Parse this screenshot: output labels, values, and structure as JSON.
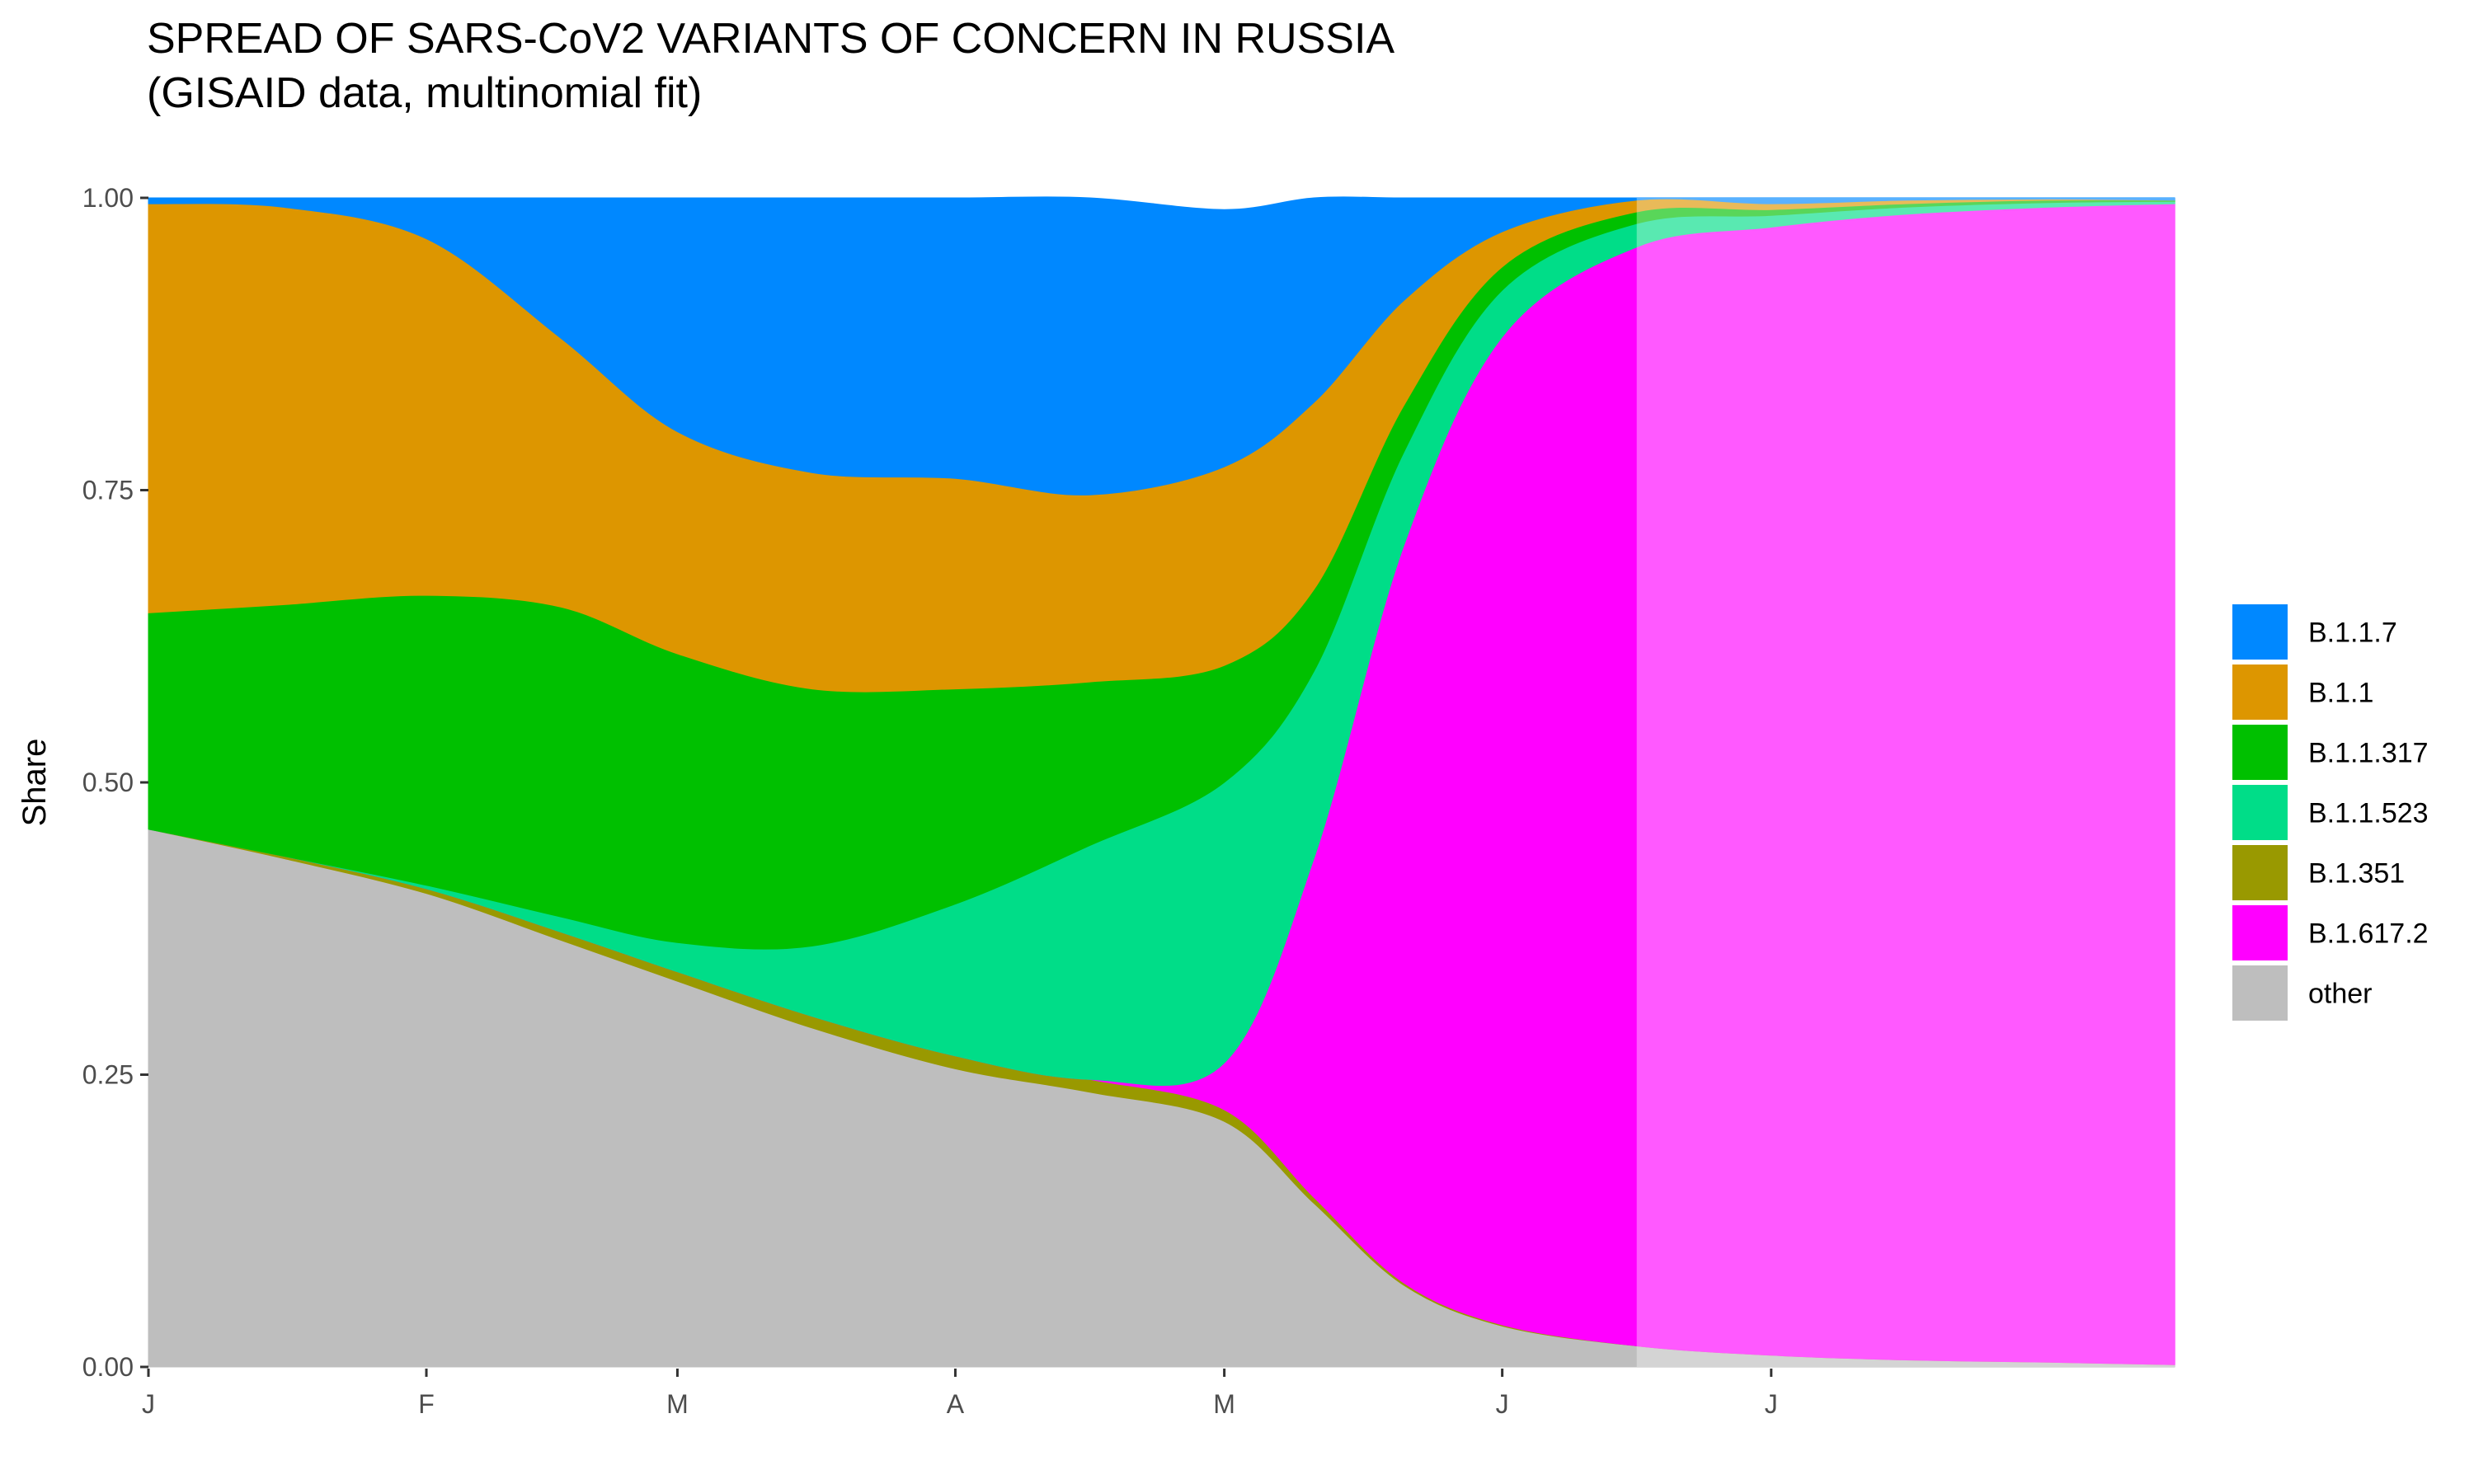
{
  "chart_data": {
    "type": "area",
    "title_line1": "SPREAD OF SARS-CoV2 VARIANTS OF CONCERN IN RUSSIA",
    "title_line2": "(GISAID data, multinomial fit)",
    "xlabel": "",
    "ylabel": "Share",
    "ylim": [
      0,
      1
    ],
    "y_ticks": [
      "0.00",
      "0.25",
      "0.50",
      "0.75",
      "1.00"
    ],
    "x_tick_labels": [
      "J",
      "F",
      "M",
      "A",
      "M",
      "J",
      "J"
    ],
    "x_tick_dates": [
      "2021-01-01",
      "2021-02-01",
      "2021-03-01",
      "2021-04-01",
      "2021-05-01",
      "2021-06-01",
      "2021-07-01"
    ],
    "x_range": [
      "2021-01-01",
      "2021-08-15"
    ],
    "projection_start": "2021-06-16",
    "grid": false,
    "legend_position": "right",
    "x": [
      "2021-01-01",
      "2021-01-16",
      "2021-02-01",
      "2021-02-16",
      "2021-03-01",
      "2021-03-16",
      "2021-04-01",
      "2021-04-16",
      "2021-05-01",
      "2021-05-11",
      "2021-05-21",
      "2021-06-01",
      "2021-06-16",
      "2021-07-01",
      "2021-07-16",
      "2021-08-01",
      "2021-08-15"
    ],
    "series": [
      {
        "name": "other",
        "color": "#BEBEBE",
        "values": [
          0.46,
          0.435,
          0.405,
          0.365,
          0.33,
          0.29,
          0.255,
          0.235,
          0.21,
          0.14,
          0.07,
          0.035,
          0.018,
          0.01,
          0.006,
          0.004,
          0.002
        ]
      },
      {
        "name": "B.1.351",
        "color": "#999900",
        "values": [
          0.0,
          0.002,
          0.004,
          0.007,
          0.008,
          0.01,
          0.011,
          0.011,
          0.01,
          0.005,
          0.002,
          0.001,
          0.0,
          0.0,
          0.0,
          0.0,
          0.0
        ]
      },
      {
        "name": "B.1.617.2",
        "color": "#FF00FF",
        "values": [
          0.0,
          0.0,
          0.0,
          0.0,
          0.0,
          0.0,
          0.0,
          0.0,
          0.04,
          0.29,
          0.63,
          0.845,
          0.94,
          0.965,
          0.98,
          0.988,
          0.993
        ]
      },
      {
        "name": "B.1.1.523",
        "color": "#00DD88",
        "values": [
          0.0,
          0.0,
          0.003,
          0.013,
          0.025,
          0.06,
          0.13,
          0.2,
          0.24,
          0.16,
          0.08,
          0.04,
          0.02,
          0.01,
          0.006,
          0.004,
          0.002
        ]
      },
      {
        "name": "B.1.1.317",
        "color": "#00C000",
        "values": [
          0.185,
          0.215,
          0.248,
          0.265,
          0.247,
          0.22,
          0.184,
          0.14,
          0.1,
          0.07,
          0.04,
          0.02,
          0.01,
          0.005,
          0.003,
          0.002,
          0.001
        ]
      },
      {
        "name": "B.1.1",
        "color": "#DD9600",
        "values": [
          0.35,
          0.34,
          0.305,
          0.23,
          0.19,
          0.185,
          0.18,
          0.16,
          0.17,
          0.16,
          0.09,
          0.03,
          0.01,
          0.005,
          0.003,
          0.001,
          0.0
        ]
      },
      {
        "name": "B.1.1.7",
        "color": "#0088FF",
        "values": [
          0.005,
          0.008,
          0.035,
          0.12,
          0.2,
          0.235,
          0.24,
          0.254,
          0.22,
          0.175,
          0.088,
          0.029,
          0.002,
          0.005,
          0.002,
          0.001,
          0.002
        ]
      }
    ],
    "legend_order": [
      "B.1.1.7",
      "B.1.1",
      "B.1.1.317",
      "B.1.1.523",
      "B.1.351",
      "B.1.617.2",
      "other"
    ]
  }
}
